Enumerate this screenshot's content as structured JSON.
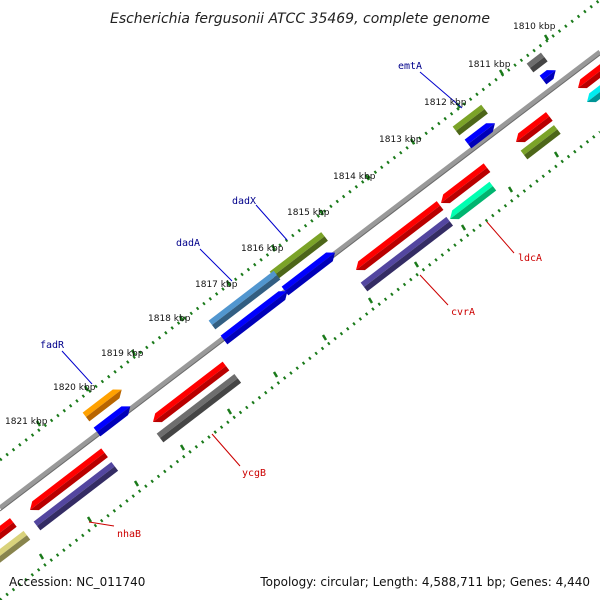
{
  "title": "Escherichia fergusonii ATCC 35469, complete genome",
  "footer": {
    "accession": "Accession: NC_011740",
    "summary": "Topology: circular; Length: 4,588,711 bp; Genes: 4,440"
  },
  "ticks": [
    "1810 kbp",
    "1811 kbp",
    "1812 kbp",
    "1813 kbp",
    "1814 kbp",
    "1815 kbp",
    "1816 kbp",
    "1817 kbp",
    "1818 kbp",
    "1819 kbp",
    "1820 kbp",
    "1821 kbp"
  ],
  "genes": {
    "emtA": "emtA",
    "dadX": "dadX",
    "dadA": "dadA",
    "fadR": "fadR",
    "ldcA": "ldcA",
    "cvrA": "cvrA",
    "ycgB": "ycgB",
    "nhaB": "nhaB"
  },
  "colors": {
    "forward_gene_label": "#00008b",
    "reverse_gene_label": "#cc0000",
    "backbone": "#888888",
    "tick_dots": "#1a7a1a",
    "cds_red": "#ff0000",
    "cds_blue": "#0000ff",
    "cds_olive": "#6b8e23",
    "cds_steel": "#4682b4",
    "cds_orange": "#ff8c00",
    "cds_indigo": "#483d8b",
    "cds_gray": "#606060",
    "cds_spring": "#00fa9a",
    "cds_cyan": "#00ced1",
    "cds_khaki": "#bdb76b"
  }
}
